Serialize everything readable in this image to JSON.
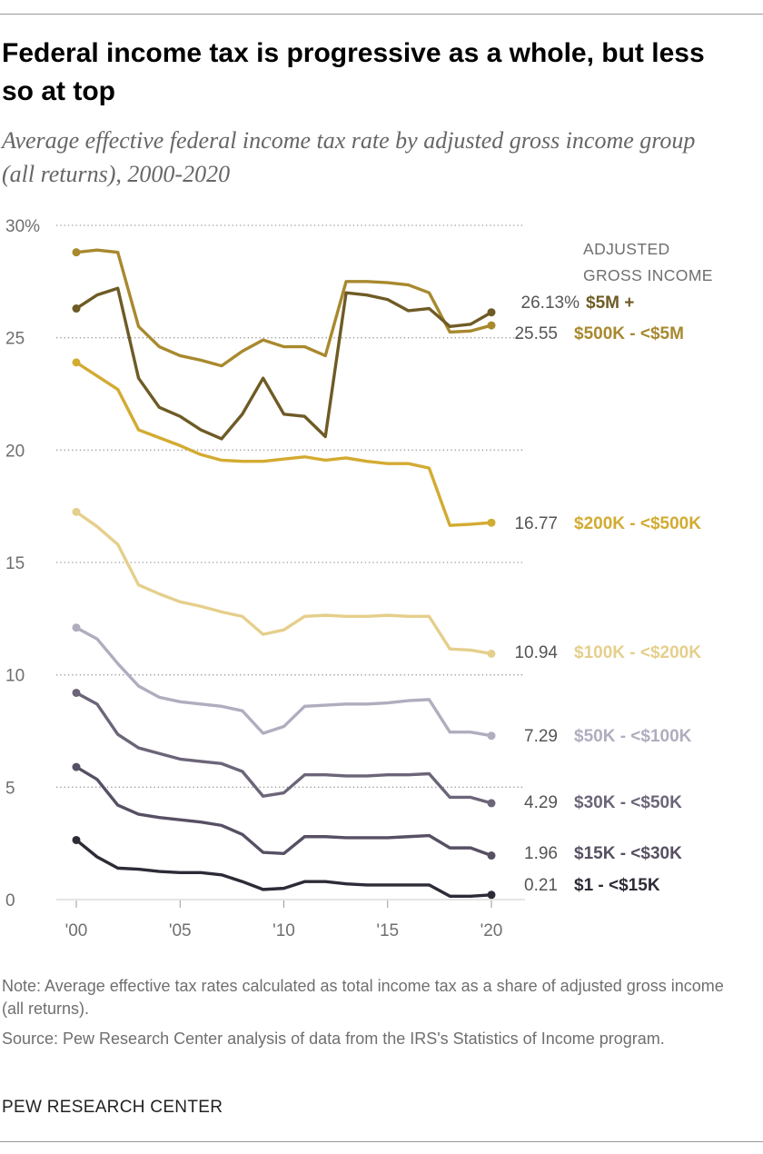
{
  "header": {
    "title": "Federal income tax is progressive as a whole, but less so at top",
    "subtitle": "Average effective federal income tax rate by adjusted gross income group (all returns), 2000-2020"
  },
  "chart_data": {
    "type": "line",
    "x": [
      2000,
      2001,
      2002,
      2003,
      2004,
      2005,
      2006,
      2007,
      2008,
      2009,
      2010,
      2011,
      2012,
      2013,
      2014,
      2015,
      2016,
      2017,
      2018,
      2019,
      2020
    ],
    "x_tick_values": [
      2000,
      2005,
      2010,
      2015,
      2020
    ],
    "x_tick_labels": [
      "'00",
      "'05",
      "'10",
      "'15",
      "'20"
    ],
    "ylim": [
      0,
      30
    ],
    "y_tick_values": [
      0,
      5,
      10,
      15,
      20,
      25,
      30
    ],
    "y_tick_labels": [
      "0",
      "5",
      "10",
      "15",
      "20",
      "25",
      "30%"
    ],
    "grid": "horizontal dotted",
    "legend_heading": [
      "ADJUSTED",
      "GROSS INCOME"
    ],
    "series": [
      {
        "name": "$500K - <$5M",
        "end_label": "25.55",
        "color": "#A8892E",
        "values": [
          28.8,
          28.9,
          28.8,
          25.5,
          24.6,
          24.2,
          24.0,
          23.75,
          24.4,
          24.9,
          24.6,
          24.6,
          24.2,
          27.5,
          27.5,
          27.45,
          27.35,
          27.0,
          25.25,
          25.3,
          25.55
        ]
      },
      {
        "name": "$5M +",
        "end_label": "26.13%",
        "color": "#6E5B25",
        "values": [
          26.3,
          26.9,
          27.2,
          23.2,
          21.9,
          21.5,
          20.9,
          20.5,
          21.6,
          23.2,
          21.6,
          21.5,
          20.6,
          27.0,
          26.9,
          26.7,
          26.2,
          26.3,
          25.5,
          25.6,
          26.13
        ]
      },
      {
        "name": "$200K - <$500K",
        "end_label": "16.77",
        "color": "#D3AB31",
        "values": [
          23.9,
          23.3,
          22.7,
          20.9,
          20.55,
          20.2,
          19.8,
          19.55,
          19.5,
          19.5,
          19.6,
          19.7,
          19.55,
          19.65,
          19.5,
          19.4,
          19.4,
          19.2,
          16.65,
          16.7,
          16.77
        ]
      },
      {
        "name": "$100K - <$200K",
        "end_label": "10.94",
        "color": "#E5CF8C",
        "values": [
          17.25,
          16.6,
          15.8,
          14.0,
          13.6,
          13.25,
          13.05,
          12.8,
          12.6,
          11.8,
          12.0,
          12.6,
          12.65,
          12.6,
          12.6,
          12.65,
          12.6,
          12.6,
          11.15,
          11.1,
          10.94
        ]
      },
      {
        "name": "$50K - <$100K",
        "end_label": "7.29",
        "color": "#AFADBE",
        "values": [
          12.1,
          11.6,
          10.5,
          9.5,
          9.0,
          8.8,
          8.7,
          8.6,
          8.4,
          7.4,
          7.7,
          8.6,
          8.65,
          8.7,
          8.7,
          8.75,
          8.85,
          8.9,
          7.45,
          7.45,
          7.29
        ]
      },
      {
        "name": "$30K - <$50K",
        "end_label": "4.29",
        "color": "#6C6579",
        "values": [
          9.2,
          8.7,
          7.35,
          6.75,
          6.5,
          6.25,
          6.15,
          6.05,
          5.7,
          4.6,
          4.75,
          5.55,
          5.55,
          5.5,
          5.5,
          5.55,
          5.55,
          5.6,
          4.55,
          4.55,
          4.29
        ]
      },
      {
        "name": "$15K - <$30K",
        "end_label": "1.96",
        "color": "#575064",
        "values": [
          5.9,
          5.35,
          4.2,
          3.8,
          3.65,
          3.55,
          3.45,
          3.3,
          2.9,
          2.1,
          2.05,
          2.8,
          2.8,
          2.75,
          2.75,
          2.75,
          2.8,
          2.85,
          2.3,
          2.3,
          1.96
        ]
      },
      {
        "name": "$1 - <$15K",
        "end_label": "0.21",
        "color": "#2D2B37",
        "values": [
          2.65,
          1.9,
          1.4,
          1.35,
          1.25,
          1.2,
          1.2,
          1.1,
          0.8,
          0.45,
          0.5,
          0.8,
          0.8,
          0.7,
          0.65,
          0.65,
          0.65,
          0.65,
          0.15,
          0.15,
          0.21
        ]
      }
    ]
  },
  "footer": {
    "note": "Note: Average effective tax rates calculated as total income tax as a share of adjusted gross income (all returns).",
    "source": "Source: Pew Research Center analysis of data from the IRS's Statistics of Income program.",
    "brand": "PEW RESEARCH CENTER"
  }
}
